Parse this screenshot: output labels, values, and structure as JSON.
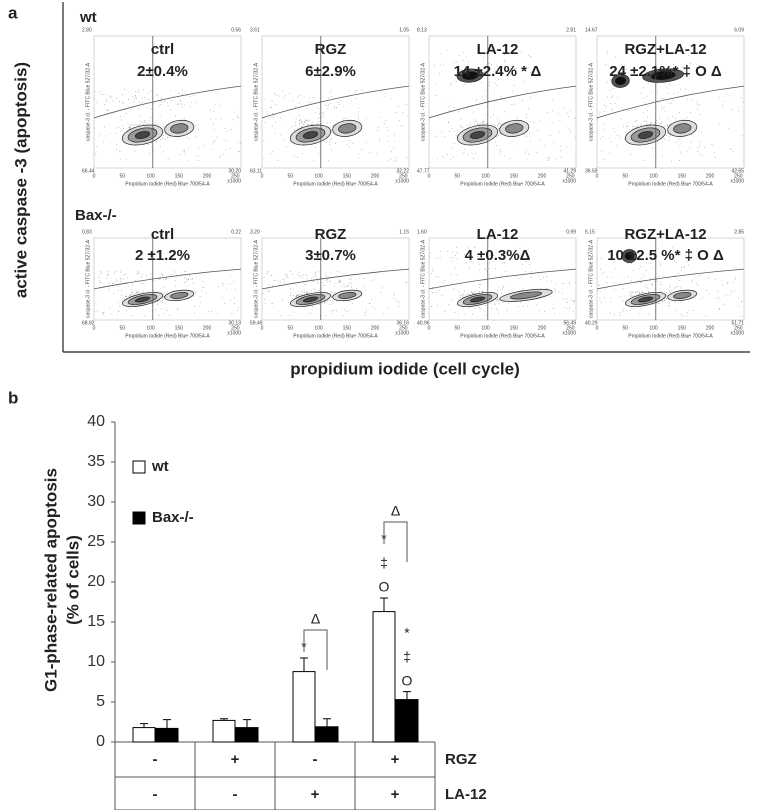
{
  "panel_a": {
    "label": "a",
    "y_label": "active caspase -3 (apoptosis)",
    "x_label": "propidium iodide (cell cycle)",
    "plot_x_label": "Propidium Iodide (Red) Blue 700/54-A",
    "plot_y_label": "caspase-3 cl. - FITC Blue 527/32-A",
    "plot_xticks": [
      "0",
      "50",
      "100",
      "150",
      "200",
      "250"
    ],
    "plot_x_unit": "x1000",
    "rows": [
      {
        "label": "wt",
        "plots": [
          {
            "title": "ctrl",
            "result": "2±0.4%",
            "quadrants": [
              "2.80",
              "0.56",
              "66.44",
              "30.20"
            ]
          },
          {
            "title": "RGZ",
            "result": "6±2.9%",
            "quadrants": [
              "3.61",
              "1.05",
              "63.11",
              "32.22"
            ]
          },
          {
            "title": "LA-12",
            "result": "14 ±2.4% *  Δ",
            "quadrants": [
              "8.13",
              "2.81",
              "47.77",
              "41.29"
            ]
          },
          {
            "title": "RGZ+LA-12",
            "result": "24 ±2.1%* ‡ O Δ",
            "quadrants": [
              "14.67",
              "6.09",
              "36.59",
              "42.65"
            ]
          }
        ]
      },
      {
        "label": "Bax-/-",
        "plots": [
          {
            "title": "ctrl",
            "result": "2 ±1.2%",
            "quadrants": [
              "0.83",
              "0.22",
              "68.82",
              "30.13"
            ]
          },
          {
            "title": "RGZ",
            "result": "3±0.7%",
            "quadrants": [
              "3.20",
              "1.15",
              "59.49",
              "36.16"
            ]
          },
          {
            "title": "LA-12",
            "result": "4 ±0.3%Δ",
            "quadrants": [
              "1.60",
              "0.99",
              "40.96",
              "56.49"
            ]
          },
          {
            "title": "RGZ+LA-12",
            "result": "10 ±2.5 %* ‡ O Δ",
            "quadrants": [
              "5.15",
              "2.85",
              "40.29",
              "51.71"
            ]
          }
        ]
      }
    ]
  },
  "chart_data": {
    "type": "bar",
    "label": "b",
    "ylabel": [
      "G1-phase-related apoptosis",
      "(% of cells)"
    ],
    "categories": [
      null,
      null,
      null,
      null
    ],
    "series": [
      {
        "name": "wt",
        "color": "#ffffff",
        "values": [
          1.8,
          2.7,
          8.8,
          16.3
        ],
        "errors": [
          0.5,
          0.2,
          1.7,
          1.7
        ],
        "marks_above": [
          [],
          [],
          [
            "*"
          ],
          [
            "*",
            "‡",
            "O"
          ]
        ]
      },
      {
        "name": "Bax-/-",
        "color": "#000000",
        "values": [
          1.7,
          1.8,
          1.9,
          5.3
        ],
        "errors": [
          1.1,
          1.0,
          1.0,
          1.0
        ],
        "marks_above": [
          [],
          [],
          [],
          [
            "*",
            "‡",
            "O"
          ]
        ]
      }
    ],
    "brackets": [
      null,
      null,
      "Δ",
      "Δ"
    ],
    "ylim": [
      0,
      40
    ],
    "yticks": [
      0,
      5,
      10,
      15,
      20,
      25,
      30,
      35,
      40
    ],
    "conditions": [
      {
        "name": "RGZ",
        "marks": [
          "-",
          "+",
          "-",
          "+"
        ]
      },
      {
        "name": "LA-12",
        "marks": [
          "-",
          "-",
          "+",
          "+"
        ]
      }
    ]
  }
}
